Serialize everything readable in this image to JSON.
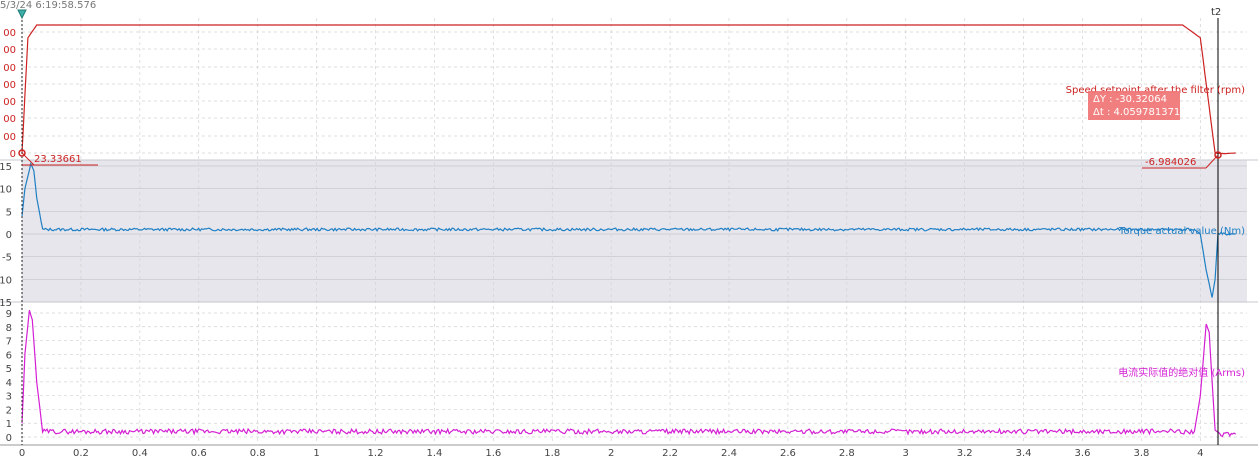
{
  "header": {
    "timestamp": "5/3/24 6:19:58.576",
    "cursor2_label": "t2"
  },
  "colors": {
    "speed": "#cc2222",
    "torque": "#1f7fc4",
    "current": "#d41fd4",
    "tooltip_bg": "#f07878",
    "band": "#e6e6ec",
    "grid": "#d2d2d2"
  },
  "tooltip": {
    "title": "Speed setpoint after the filter (rpm)",
    "dy_line": "ΔY : -30.32064",
    "dt_line": "Δt : 4.059781371672"
  },
  "chart_data": [
    {
      "type": "line",
      "title": "Speed setpoint after the filter (rpm)",
      "x_range": [
        0,
        4.12
      ],
      "x_ticks": [
        0,
        0.2,
        0.4,
        0.6,
        0.8,
        1,
        1.2,
        1.4,
        1.6,
        1.8,
        2,
        2.2,
        2.4,
        2.6,
        2.8,
        3,
        3.2,
        3.4,
        3.6,
        3.8,
        4
      ],
      "y_tick_labels": [
        "00",
        "00",
        "00",
        "00",
        "00",
        "00",
        "00",
        "00",
        "0"
      ],
      "series": [
        {
          "name": "Speed setpoint after the filter (rpm)",
          "x": [
            0,
            0.02,
            0.05,
            0.14,
            2.0,
            3.94,
            4.0,
            4.05,
            4.08,
            4.12
          ],
          "y": [
            0,
            180,
            200,
            200,
            200,
            200,
            180,
            0,
            -1,
            0
          ]
        }
      ],
      "cursor_values": [
        "23.33661",
        "-6.984026"
      ]
    },
    {
      "type": "line",
      "title": "Torque actual value (Nm)",
      "x_range": [
        0,
        4.12
      ],
      "y_ticks": [
        15,
        10,
        5,
        0,
        -5,
        -10,
        -15
      ],
      "y_tick_labels": [
        "15",
        "10",
        "5",
        "0",
        "-5",
        "-10",
        "-15"
      ],
      "series": [
        {
          "name": "Torque actual value (Nm)",
          "x": [
            0,
            0.01,
            0.03,
            0.04,
            0.05,
            0.07,
            2.0,
            3.98,
            4.0,
            4.02,
            4.04,
            4.05,
            4.06,
            4.12
          ],
          "y": [
            4,
            10,
            15.5,
            14,
            8,
            1,
            1,
            1,
            0,
            -8,
            -14,
            -10,
            0,
            0
          ]
        }
      ]
    },
    {
      "type": "line",
      "title": "电流实际值的绝对值 (Arms)",
      "x_range": [
        0,
        4.12
      ],
      "y_ticks": [
        9,
        8,
        7,
        6,
        5,
        4,
        3,
        2,
        1,
        0
      ],
      "y_tick_labels": [
        "9",
        "8",
        "7",
        "6",
        "5",
        "4",
        "3",
        "2",
        "1",
        "0"
      ],
      "series": [
        {
          "name": "电流实际值的绝对值 (Arms)",
          "x": [
            0,
            0.01,
            0.025,
            0.035,
            0.05,
            0.07,
            2.0,
            3.98,
            4.0,
            4.02,
            4.03,
            4.05,
            4.07,
            4.12
          ],
          "y": [
            1,
            6,
            9.2,
            8.5,
            4,
            0.4,
            0.4,
            0.4,
            3,
            8.2,
            7.6,
            0.5,
            0.2,
            0.2
          ]
        }
      ]
    }
  ]
}
